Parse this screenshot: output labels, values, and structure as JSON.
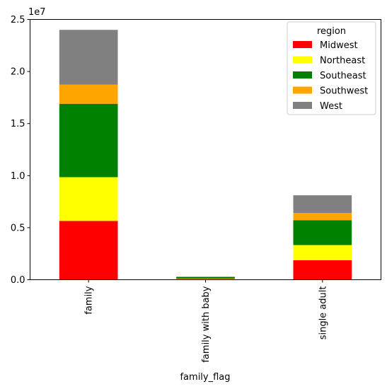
{
  "chart_data": {
    "type": "bar",
    "stacked": true,
    "categories": [
      "family",
      "family with baby",
      "single adult"
    ],
    "series": [
      {
        "name": "Midwest",
        "color": "#ff0000",
        "values": [
          5650000,
          60000,
          1880000
        ]
      },
      {
        "name": "Northeast",
        "color": "#ffff00",
        "values": [
          4200000,
          40000,
          1450000
        ]
      },
      {
        "name": "Southeast",
        "color": "#008000",
        "values": [
          7050000,
          160000,
          2380000
        ]
      },
      {
        "name": "Southwest",
        "color": "#ffa500",
        "values": [
          1850000,
          15000,
          700000
        ]
      },
      {
        "name": "West",
        "color": "#808080",
        "values": [
          5250000,
          25000,
          1700000
        ]
      }
    ],
    "xlabel": "family_flag",
    "ylabel": "",
    "ylim": [
      0,
      25000000
    ],
    "yticks": [
      0,
      5000000,
      10000000,
      15000000,
      20000000,
      25000000
    ],
    "ytick_labels": [
      "0.0",
      "0.5",
      "1.0",
      "1.5",
      "2.0",
      "2.5"
    ],
    "y_offset_label": "1e7",
    "legend": {
      "title": "region",
      "placement": "top-right"
    },
    "grid": false
  }
}
